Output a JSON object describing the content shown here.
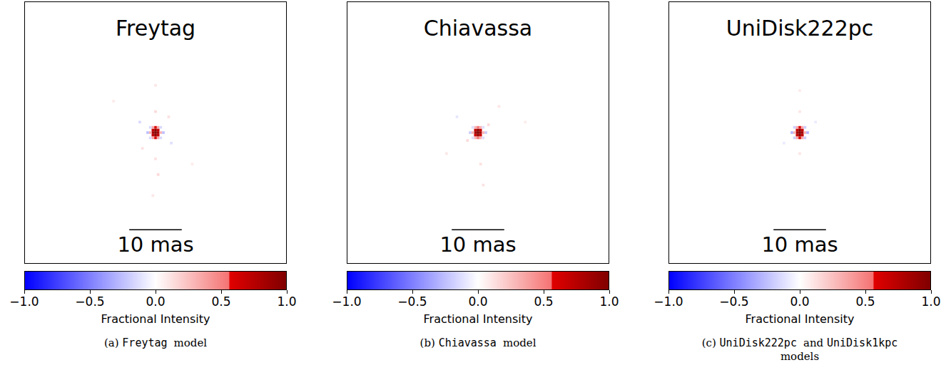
{
  "chart_data": [
    {
      "type": "heatmap",
      "title": "Freytag",
      "caption": "(a) Freytag model",
      "xlim": [
        -25,
        25
      ],
      "ylim": [
        -25,
        25
      ],
      "tick_labels": false,
      "cell_size": 0.5,
      "scale_bar": {
        "length": 10,
        "label": "10 mas"
      },
      "colorbar": {
        "range": [
          -1,
          1
        ],
        "ticks": [
          {
            "value": -1,
            "label": "−1.0"
          },
          {
            "value": -0.5,
            "label": "−0.5"
          },
          {
            "value": 0,
            "label": "0.0"
          },
          {
            "value": 0.5,
            "label": "0.5"
          },
          {
            "value": 1,
            "label": "1.0"
          }
        ],
        "label": "Fractional Intensity"
      },
      "cells": [
        {
          "x": 0,
          "y": 0,
          "value": 1.0
        },
        {
          "x": 0,
          "y": 0.5,
          "value": 0.95
        },
        {
          "x": 0,
          "y": -0.5,
          "value": 0.95
        },
        {
          "x": 0.5,
          "y": 0,
          "value": 0.85
        },
        {
          "x": -0.5,
          "y": 0,
          "value": 0.85
        },
        {
          "x": 0.5,
          "y": 0.5,
          "value": 0.7
        },
        {
          "x": -0.5,
          "y": 0.5,
          "value": 0.7
        },
        {
          "x": 0.5,
          "y": -0.5,
          "value": 0.7
        },
        {
          "x": -0.5,
          "y": -0.5,
          "value": 0.7
        },
        {
          "x": 0,
          "y": 1,
          "value": 0.6
        },
        {
          "x": 0,
          "y": -1,
          "value": 0.6
        },
        {
          "x": 0.5,
          "y": 1,
          "value": 0.35
        },
        {
          "x": -0.5,
          "y": 1,
          "value": 0.35
        },
        {
          "x": 0.5,
          "y": -1,
          "value": 0.35
        },
        {
          "x": -0.5,
          "y": -1,
          "value": 0.35
        },
        {
          "x": 1,
          "y": 0,
          "value": 0.3
        },
        {
          "x": -1,
          "y": 0,
          "value": 0.3
        },
        {
          "x": 1.5,
          "y": 0,
          "value": -0.25
        },
        {
          "x": -1.5,
          "y": 0,
          "value": -0.25
        },
        {
          "x": 1,
          "y": 1,
          "value": -0.15
        },
        {
          "x": -1,
          "y": 1,
          "value": -0.15
        },
        {
          "x": 1,
          "y": -1,
          "value": -0.15
        },
        {
          "x": -1,
          "y": -1,
          "value": -0.15
        },
        {
          "x": 0,
          "y": 4,
          "value": 0.15
        },
        {
          "x": 0,
          "y": -5,
          "value": 0.12
        },
        {
          "x": 0.5,
          "y": -8,
          "value": 0.15
        },
        {
          "x": -3,
          "y": 2,
          "value": -0.15
        },
        {
          "x": 3,
          "y": -2,
          "value": -0.12
        },
        {
          "x": 2.5,
          "y": 3,
          "value": 0.12
        },
        {
          "x": -2.5,
          "y": -3,
          "value": 0.12
        },
        {
          "x": 0,
          "y": 9,
          "value": 0.1
        },
        {
          "x": -0.5,
          "y": -12,
          "value": 0.1
        },
        {
          "x": -8,
          "y": 6,
          "value": 0.08
        },
        {
          "x": 7,
          "y": -6,
          "value": 0.08
        }
      ]
    },
    {
      "type": "heatmap",
      "title": "Chiavassa",
      "caption": "(b) Chiavassa model",
      "xlim": [
        -25,
        25
      ],
      "ylim": [
        -25,
        25
      ],
      "tick_labels": false,
      "cell_size": 0.5,
      "scale_bar": {
        "length": 10,
        "label": "10 mas"
      },
      "colorbar": {
        "range": [
          -1,
          1
        ],
        "ticks": [
          {
            "value": -1,
            "label": "−1.0"
          },
          {
            "value": -0.5,
            "label": "−0.5"
          },
          {
            "value": 0,
            "label": "0.0"
          },
          {
            "value": 0.5,
            "label": "0.5"
          },
          {
            "value": 1,
            "label": "1.0"
          }
        ],
        "label": "Fractional Intensity"
      },
      "cells": [
        {
          "x": 0,
          "y": 0,
          "value": 1.0
        },
        {
          "x": 0,
          "y": 0.5,
          "value": 0.95
        },
        {
          "x": 0,
          "y": -0.5,
          "value": 0.9
        },
        {
          "x": 0.5,
          "y": 0,
          "value": 0.85
        },
        {
          "x": -0.5,
          "y": 0,
          "value": 0.85
        },
        {
          "x": 0.5,
          "y": 0.5,
          "value": 0.7
        },
        {
          "x": -0.5,
          "y": 0.5,
          "value": 0.7
        },
        {
          "x": 0.5,
          "y": -0.5,
          "value": 0.65
        },
        {
          "x": -0.5,
          "y": -0.5,
          "value": 0.65
        },
        {
          "x": 0,
          "y": 1,
          "value": 0.55
        },
        {
          "x": 0,
          "y": -1,
          "value": 0.55
        },
        {
          "x": 0.5,
          "y": 1,
          "value": 0.3
        },
        {
          "x": -0.5,
          "y": 1,
          "value": 0.3
        },
        {
          "x": 0.5,
          "y": -1,
          "value": 0.3
        },
        {
          "x": -0.5,
          "y": -1,
          "value": 0.3
        },
        {
          "x": 1,
          "y": 0,
          "value": 0.3
        },
        {
          "x": -1,
          "y": 0,
          "value": 0.3
        },
        {
          "x": 1.5,
          "y": 0,
          "value": -0.2
        },
        {
          "x": -1.5,
          "y": 0,
          "value": -0.2
        },
        {
          "x": 1,
          "y": 1,
          "value": -0.12
        },
        {
          "x": -1,
          "y": 1,
          "value": -0.12
        },
        {
          "x": 1,
          "y": -1,
          "value": -0.12
        },
        {
          "x": -1,
          "y": -1,
          "value": -0.12
        },
        {
          "x": 2,
          "y": 1.5,
          "value": 0.15
        },
        {
          "x": -2,
          "y": -1.5,
          "value": 0.15
        },
        {
          "x": 0.5,
          "y": -6,
          "value": 0.12
        },
        {
          "x": 1,
          "y": -10,
          "value": 0.12
        },
        {
          "x": -4,
          "y": 3,
          "value": -0.1
        },
        {
          "x": 4,
          "y": 5,
          "value": 0.1
        },
        {
          "x": -6,
          "y": -4,
          "value": 0.1
        },
        {
          "x": 9,
          "y": 2,
          "value": 0.08
        }
      ]
    },
    {
      "type": "heatmap",
      "title": "UniDisk222pc",
      "caption": "(c) UniDisk222pc and UniDisk1kpc models",
      "xlim": [
        -25,
        25
      ],
      "ylim": [
        -25,
        25
      ],
      "tick_labels": false,
      "cell_size": 0.5,
      "scale_bar": {
        "length": 10,
        "label": "10 mas"
      },
      "colorbar": {
        "range": [
          -1,
          1
        ],
        "ticks": [
          {
            "value": -1,
            "label": "−1.0"
          },
          {
            "value": -0.5,
            "label": "−0.5"
          },
          {
            "value": 0,
            "label": "0.0"
          },
          {
            "value": 0.5,
            "label": "0.5"
          },
          {
            "value": 1,
            "label": "1.0"
          }
        ],
        "label": "Fractional Intensity"
      },
      "cells": [
        {
          "x": 0,
          "y": 0,
          "value": 1.0
        },
        {
          "x": 0,
          "y": 0.5,
          "value": 0.95
        },
        {
          "x": 0,
          "y": -0.5,
          "value": 0.95
        },
        {
          "x": 0.5,
          "y": 0,
          "value": 0.85
        },
        {
          "x": -0.5,
          "y": 0,
          "value": 0.85
        },
        {
          "x": 0.5,
          "y": 0.5,
          "value": 0.7
        },
        {
          "x": -0.5,
          "y": 0.5,
          "value": 0.7
        },
        {
          "x": 0.5,
          "y": -0.5,
          "value": 0.7
        },
        {
          "x": -0.5,
          "y": -0.5,
          "value": 0.7
        },
        {
          "x": 0,
          "y": 1,
          "value": 0.6
        },
        {
          "x": 0,
          "y": -1,
          "value": 0.6
        },
        {
          "x": 0.5,
          "y": 1,
          "value": 0.35
        },
        {
          "x": -0.5,
          "y": 1,
          "value": 0.35
        },
        {
          "x": 0.5,
          "y": -1,
          "value": 0.35
        },
        {
          "x": -0.5,
          "y": -1,
          "value": 0.35
        },
        {
          "x": 1,
          "y": 0,
          "value": 0.3
        },
        {
          "x": -1,
          "y": 0,
          "value": 0.3
        },
        {
          "x": 1.5,
          "y": 0,
          "value": -0.3
        },
        {
          "x": -1.5,
          "y": 0,
          "value": -0.3
        },
        {
          "x": 1,
          "y": 1,
          "value": -0.2
        },
        {
          "x": -1,
          "y": 1,
          "value": -0.2
        },
        {
          "x": 1,
          "y": -1,
          "value": -0.2
        },
        {
          "x": -1,
          "y": -1,
          "value": -0.2
        },
        {
          "x": 0,
          "y": 4,
          "value": 0.1
        },
        {
          "x": 0,
          "y": -4,
          "value": 0.1
        },
        {
          "x": 0,
          "y": 8,
          "value": 0.08
        },
        {
          "x": -3,
          "y": -2,
          "value": -0.08
        },
        {
          "x": 3,
          "y": 2,
          "value": -0.08
        }
      ]
    }
  ]
}
